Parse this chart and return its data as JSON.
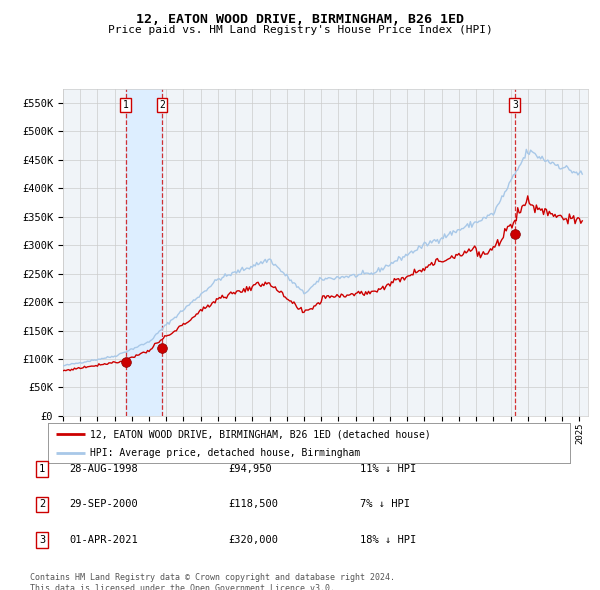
{
  "title": "12, EATON WOOD DRIVE, BIRMINGHAM, B26 1ED",
  "subtitle": "Price paid vs. HM Land Registry's House Price Index (HPI)",
  "legend_line1": "12, EATON WOOD DRIVE, BIRMINGHAM, B26 1ED (detached house)",
  "legend_line2": "HPI: Average price, detached house, Birmingham",
  "table": [
    {
      "num": 1,
      "date": "28-AUG-1998",
      "price": "£94,950",
      "pct": "11% ↓ HPI"
    },
    {
      "num": 2,
      "date": "29-SEP-2000",
      "price": "£118,500",
      "pct": "7% ↓ HPI"
    },
    {
      "num": 3,
      "date": "01-APR-2021",
      "price": "£320,000",
      "pct": "18% ↓ HPI"
    }
  ],
  "footer": "Contains HM Land Registry data © Crown copyright and database right 2024.\nThis data is licensed under the Open Government Licence v3.0.",
  "sale_dates_year": [
    1998.65,
    2000.75,
    2021.25
  ],
  "sale_prices": [
    94950,
    118500,
    320000
  ],
  "ylim": [
    0,
    575000
  ],
  "yticks": [
    0,
    50000,
    100000,
    150000,
    200000,
    250000,
    300000,
    350000,
    400000,
    450000,
    500000,
    550000
  ],
  "hpi_color": "#a8c8e8",
  "price_color": "#cc0000",
  "grid_color": "#cccccc",
  "vline_color": "#cc0000",
  "shade_color": "#ddeeff",
  "background_color": "#ffffff",
  "plot_bg_color": "#f0f4f8"
}
